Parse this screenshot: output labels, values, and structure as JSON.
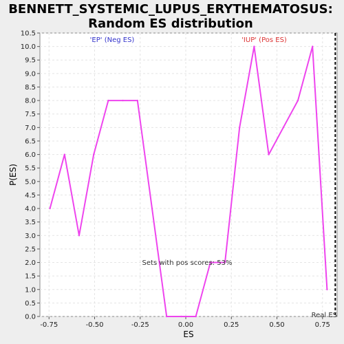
{
  "chart_data": {
    "type": "line",
    "title_line1": "BENNETT_SYSTEMIC_LUPUS_ERYTHEMATOSUS:",
    "title_line2": "Random ES distribution",
    "xlabel": "ES",
    "ylabel": "P(ES)",
    "xlim": [
      -0.8,
      0.83
    ],
    "ylim": [
      0,
      10.5
    ],
    "x_ticks": [
      "-0.75",
      "-0.50",
      "-0.25",
      "0.00",
      "0.25",
      "0.50",
      "0.75"
    ],
    "x_tick_values": [
      -0.75,
      -0.5,
      -0.25,
      0.0,
      0.25,
      0.5,
      0.75
    ],
    "y_ticks": [
      "0.0",
      "0.5",
      "1.0",
      "1.5",
      "2.0",
      "2.5",
      "3.0",
      "3.5",
      "4.0",
      "4.5",
      "5.0",
      "5.5",
      "6.0",
      "6.5",
      "7.0",
      "7.5",
      "8.0",
      "8.5",
      "9.0",
      "9.5",
      "10.0",
      "10.5"
    ],
    "y_tick_values": [
      0,
      0.5,
      1,
      1.5,
      2,
      2.5,
      3,
      3.5,
      4,
      4.5,
      5,
      5.5,
      6,
      6.5,
      7,
      7.5,
      8,
      8.5,
      9,
      9.5,
      10,
      10.5
    ],
    "grid": true,
    "series": [
      {
        "color": "#ee44ee",
        "x": [
          -0.745,
          -0.665,
          -0.585,
          -0.505,
          -0.425,
          -0.345,
          -0.265,
          -0.185,
          -0.105,
          -0.025,
          0.055,
          0.135,
          0.215,
          0.295,
          0.375,
          0.455,
          0.535,
          0.615,
          0.695,
          0.775
        ],
        "y": [
          4.0,
          6.0,
          3.0,
          6.0,
          8.0,
          8.0,
          8.0,
          4.0,
          0.0,
          0.0,
          0.0,
          2.0,
          2.0,
          7.0,
          10.0,
          6.0,
          7.0,
          8.0,
          10.0,
          1.0
        ]
      }
    ],
    "neg_label": "'EP' (Neg ES)",
    "neg_color": "#3333cc",
    "pos_label": "'IUP' (Pos ES)",
    "pos_color": "#dd3333",
    "annotation": "Sets with pos scores: 53%",
    "real_es_label": "Real ES",
    "real_es_x": 0.82
  }
}
